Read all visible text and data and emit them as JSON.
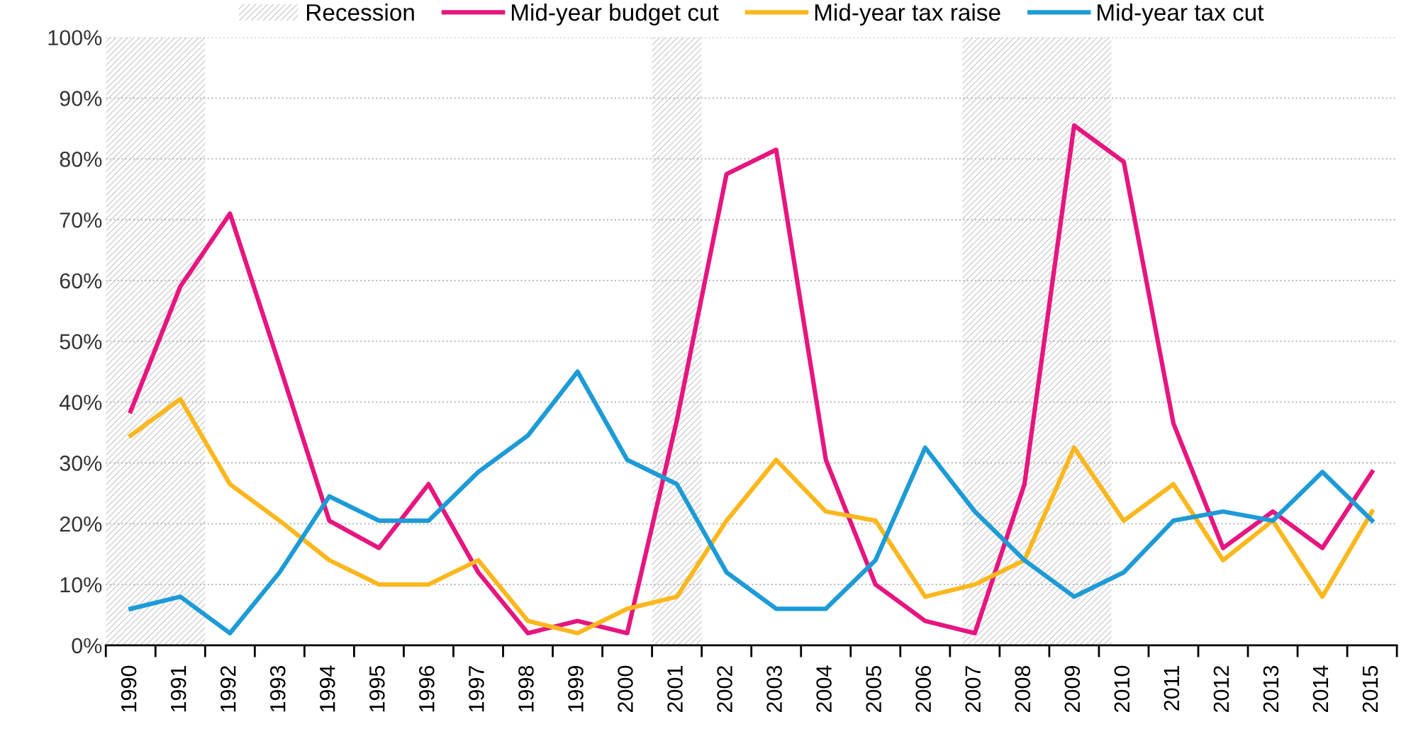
{
  "chart_data": {
    "type": "line",
    "x": [
      1990,
      1991,
      1992,
      1993,
      1994,
      1995,
      1996,
      1997,
      1998,
      1999,
      2000,
      2001,
      2002,
      2003,
      2004,
      2005,
      2006,
      2007,
      2008,
      2009,
      2010,
      2011,
      2012,
      2013,
      2014,
      2015
    ],
    "series": [
      {
        "name": "Mid-year budget cut",
        "color": "#e6157f",
        "values": [
          38.5,
          59,
          71,
          46,
          20.5,
          16,
          26.5,
          12,
          2,
          4,
          2,
          37,
          77.5,
          81.5,
          30.5,
          10,
          4,
          2,
          26.5,
          85.5,
          79.5,
          36.5,
          16,
          22,
          16,
          28.5
        ]
      },
      {
        "name": "Mid-year tax raise",
        "color": "#fbb71d",
        "values": [
          34.5,
          40.5,
          26.5,
          20.5,
          14,
          10,
          10,
          14,
          4,
          2,
          6,
          8,
          20.5,
          30.5,
          22,
          20.5,
          8,
          10,
          14,
          32.5,
          20.5,
          26.5,
          14,
          20.5,
          8,
          22
        ]
      },
      {
        "name": "Mid-year tax cut",
        "color": "#1d9bd7",
        "values": [
          6,
          8,
          2,
          12,
          24.5,
          20.5,
          20.5,
          28.5,
          34.5,
          45,
          30.5,
          26.5,
          12,
          6,
          6,
          14,
          32.5,
          22,
          14,
          8,
          12,
          20.5,
          22,
          20.5,
          28.5,
          20.5
        ]
      }
    ],
    "bands": [
      {
        "axis": "x",
        "from": 1989.5,
        "to": 1991.5,
        "label": "Recession",
        "color": "#d0d0d0"
      },
      {
        "axis": "x",
        "from": 2000.5,
        "to": 2001.5,
        "color": "#d0d0d0"
      },
      {
        "axis": "x",
        "from": 2006.75,
        "to": 2009.75,
        "color": "#d0d0d0"
      }
    ],
    "xlim": [
      1989.5,
      2015.5
    ],
    "xticks": [
      1990,
      1991,
      1992,
      1993,
      1994,
      1995,
      1996,
      1997,
      1998,
      1999,
      2000,
      2001,
      2002,
      2003,
      2004,
      2005,
      2006,
      2007,
      2008,
      2009,
      2010,
      2011,
      2012,
      2013,
      2014,
      2015
    ],
    "ylim": [
      0,
      100
    ],
    "yticks": [
      {
        "value": 0,
        "label": "0%"
      },
      {
        "value": 10,
        "label": "10%"
      },
      {
        "value": 20,
        "label": "20%"
      },
      {
        "value": 30,
        "label": "30%"
      },
      {
        "value": 40,
        "label": "40%"
      },
      {
        "value": 50,
        "label": "50%"
      },
      {
        "value": 60,
        "label": "60%"
      },
      {
        "value": 70,
        "label": "70%"
      },
      {
        "value": 80,
        "label": "80%"
      },
      {
        "value": 90,
        "label": "90%"
      },
      {
        "value": 100,
        "label": "100%"
      }
    ],
    "grid": "y",
    "legend": "top",
    "marker": "none",
    "line_style": "solid"
  }
}
